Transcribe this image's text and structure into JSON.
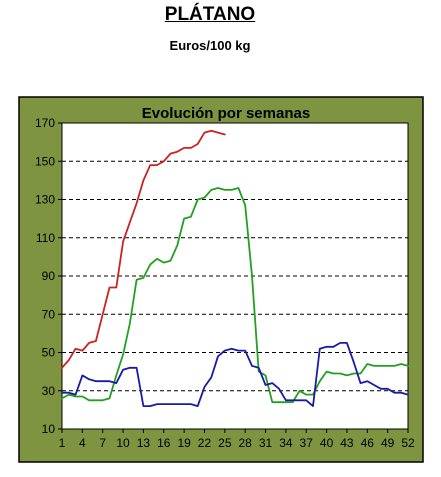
{
  "title": "PLÁTANO",
  "subtitle": "Euros/100 kg",
  "chart_data": {
    "type": "line",
    "title": "Evolución por semanas",
    "xlabel": "",
    "ylabel": "",
    "xlim": [
      1,
      52
    ],
    "ylim": [
      10,
      170
    ],
    "yticks": [
      10,
      30,
      50,
      70,
      90,
      110,
      130,
      150,
      170
    ],
    "xticks": [
      1,
      4,
      7,
      10,
      13,
      16,
      19,
      22,
      25,
      28,
      31,
      34,
      37,
      40,
      43,
      46,
      49,
      52
    ],
    "grid": "horizontal dashed",
    "legend": "none",
    "colors": {
      "panel_bg": "#7e9440",
      "plot_bg": "#ffffff",
      "red": "#cc2222",
      "green": "#22a022",
      "blue": "#1a1aa8"
    },
    "series": [
      {
        "color": "#cc2222",
        "x": [
          1,
          2,
          3,
          4,
          5,
          6,
          7,
          8,
          9,
          10,
          11,
          12,
          13,
          14,
          15,
          16,
          17,
          18,
          19,
          20,
          21,
          22,
          23,
          24,
          25
        ],
        "y": [
          42,
          46,
          52,
          51,
          55,
          56,
          70,
          84,
          84,
          108,
          118,
          128,
          140,
          148,
          148,
          150,
          154,
          155,
          157,
          157,
          159,
          165,
          166,
          165,
          164
        ]
      },
      {
        "color": "#22a022",
        "x": [
          1,
          2,
          3,
          4,
          5,
          6,
          7,
          8,
          9,
          10,
          11,
          12,
          13,
          14,
          15,
          16,
          17,
          18,
          19,
          20,
          21,
          22,
          23,
          24,
          25,
          26,
          27,
          28,
          29,
          30,
          31,
          32,
          33,
          34,
          35,
          36,
          37,
          38,
          39,
          40,
          41,
          42,
          43,
          44,
          45,
          46,
          47,
          48,
          49,
          50,
          51,
          52
        ],
        "y": [
          26,
          28,
          27,
          27,
          25,
          25,
          25,
          26,
          38,
          49,
          65,
          88,
          89,
          96,
          99,
          97,
          98,
          106,
          120,
          121,
          130,
          131,
          135,
          136,
          135,
          135,
          136,
          127,
          90,
          40,
          38,
          24,
          24,
          24,
          24,
          30,
          28,
          28,
          35,
          40,
          39,
          39,
          38,
          39,
          39,
          44,
          43,
          43,
          43,
          43,
          44,
          43
        ]
      },
      {
        "color": "#1a1aa8",
        "x": [
          1,
          2,
          3,
          4,
          5,
          6,
          7,
          8,
          9,
          10,
          11,
          12,
          13,
          14,
          15,
          16,
          17,
          18,
          19,
          20,
          21,
          22,
          23,
          24,
          25,
          26,
          27,
          28,
          29,
          30,
          31,
          32,
          33,
          34,
          35,
          36,
          37,
          38,
          39,
          40,
          41,
          42,
          43,
          44,
          45,
          46,
          47,
          48,
          49,
          50,
          51,
          52
        ],
        "y": [
          29,
          29,
          28,
          38,
          36,
          35,
          35,
          35,
          34,
          41,
          42,
          42,
          22,
          22,
          23,
          23,
          23,
          23,
          23,
          23,
          22,
          32,
          37,
          48,
          51,
          52,
          51,
          51,
          43,
          42,
          33,
          34,
          31,
          25,
          25,
          25,
          25,
          22,
          52,
          53,
          53,
          55,
          55,
          45,
          34,
          35,
          33,
          31,
          31,
          29,
          29,
          28
        ]
      }
    ]
  }
}
